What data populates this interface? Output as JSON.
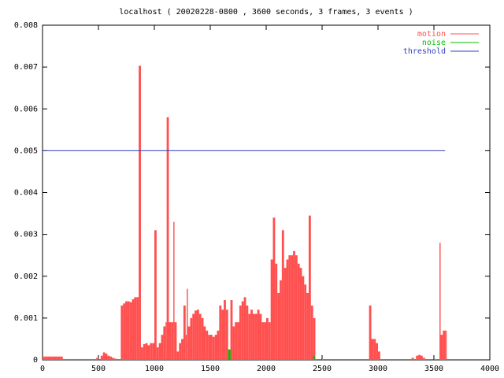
{
  "chart_data": {
    "type": "impulse",
    "title": "localhost ( 20020228-0800 , 3600 seconds, 3 frames, 3 events )",
    "xlim": [
      0,
      4000
    ],
    "xticks": [
      0,
      500,
      1000,
      1500,
      2000,
      2500,
      3000,
      3500,
      4000
    ],
    "ylim": [
      0,
      0.008
    ],
    "yticks": [
      0,
      0.001,
      0.002,
      0.003,
      0.004,
      0.005,
      0.006,
      0.007,
      0.008
    ],
    "legend": "top-right",
    "series": [
      {
        "name": "motion",
        "color": "#ff5050",
        "style": "impulse",
        "x": [
          0,
          20,
          40,
          60,
          80,
          100,
          120,
          140,
          160,
          200,
          240,
          280,
          320,
          360,
          400,
          440,
          480,
          520,
          540,
          560,
          580,
          600,
          620,
          640,
          680,
          700,
          720,
          740,
          760,
          780,
          800,
          820,
          840,
          860,
          880,
          900,
          920,
          940,
          960,
          980,
          1000,
          1020,
          1040,
          1060,
          1080,
          1100,
          1110,
          1130,
          1150,
          1170,
          1180,
          1200,
          1220,
          1240,
          1260,
          1280,
          1290,
          1300,
          1320,
          1340,
          1360,
          1380,
          1400,
          1420,
          1440,
          1460,
          1480,
          1500,
          1520,
          1540,
          1560,
          1580,
          1600,
          1620,
          1640,
          1660,
          1680,
          1700,
          1720,
          1740,
          1760,
          1780,
          1800,
          1820,
          1840,
          1860,
          1880,
          1900,
          1920,
          1940,
          1960,
          1980,
          2000,
          2020,
          2040,
          2060,
          2080,
          2100,
          2120,
          2140,
          2160,
          2180,
          2200,
          2220,
          2240,
          2260,
          2280,
          2300,
          2320,
          2340,
          2360,
          2380,
          2400,
          2420,
          2440,
          2500,
          2600,
          2700,
          2800,
          2900,
          2920,
          2940,
          2960,
          2980,
          3000,
          3020,
          3100,
          3200,
          3300,
          3340,
          3360,
          3380,
          3400,
          3500,
          3550,
          3560,
          3580,
          3600
        ],
        "values": [
          8e-05,
          8e-05,
          8e-05,
          8e-05,
          8e-05,
          8e-05,
          8e-05,
          8e-05,
          8e-05,
          2e-05,
          2e-05,
          2e-05,
          2e-05,
          2e-05,
          2e-05,
          2e-05,
          5e-05,
          0.0001,
          0.00018,
          0.00015,
          0.0001,
          8e-05,
          5e-05,
          3e-05,
          2e-05,
          0.0013,
          0.00135,
          0.0014,
          0.0014,
          0.00138,
          0.00145,
          0.0015,
          0.0015,
          0.00703,
          0.0003,
          0.00038,
          0.0004,
          0.00035,
          0.0004,
          0.0004,
          0.0031,
          0.0003,
          0.0004,
          0.0006,
          0.0008,
          0.0009,
          0.0058,
          0.0009,
          0.0009,
          0.0033,
          0.0009,
          0.0002,
          0.0004,
          0.0005,
          0.0013,
          0.0006,
          0.0017,
          0.0008,
          0.001,
          0.0011,
          0.00118,
          0.0012,
          0.0011,
          0.001,
          0.0008,
          0.0007,
          0.0006,
          0.0006,
          0.00055,
          0.0006,
          0.0007,
          0.0013,
          0.0012,
          0.00143,
          0.0012,
          5e-05,
          0.00143,
          0.0008,
          0.0009,
          0.0009,
          0.0013,
          0.0014,
          0.0015,
          0.0013,
          0.0011,
          0.0012,
          0.0011,
          0.0011,
          0.0012,
          0.0011,
          0.0009,
          0.0009,
          0.001,
          0.0009,
          0.0024,
          0.0034,
          0.0023,
          0.0016,
          0.0019,
          0.0031,
          0.0022,
          0.0024,
          0.0025,
          0.0025,
          0.0026,
          0.0025,
          0.0023,
          0.0022,
          0.002,
          0.0018,
          0.0016,
          0.00345,
          0.0013,
          0.001,
          2e-05,
          2e-05,
          2e-05,
          2e-05,
          2e-05,
          2e-05,
          0.0013,
          0.0005,
          0.0005,
          0.0004,
          0.0002,
          2e-05,
          2e-05,
          2e-05,
          5e-05,
          0.0001,
          0.00012,
          0.0001,
          5e-05,
          2e-05,
          0.0028,
          0.0006,
          0.0007,
          0.0007
        ]
      },
      {
        "name": "noise",
        "color": "#00c000",
        "style": "impulse",
        "x": [
          1660,
          2420
        ],
        "values": [
          0.00025,
          0.0001
        ]
      },
      {
        "name": "threshold",
        "color": "#3040c0",
        "style": "line",
        "x": [
          0,
          3600
        ],
        "values": [
          0.005,
          0.005
        ]
      }
    ]
  }
}
